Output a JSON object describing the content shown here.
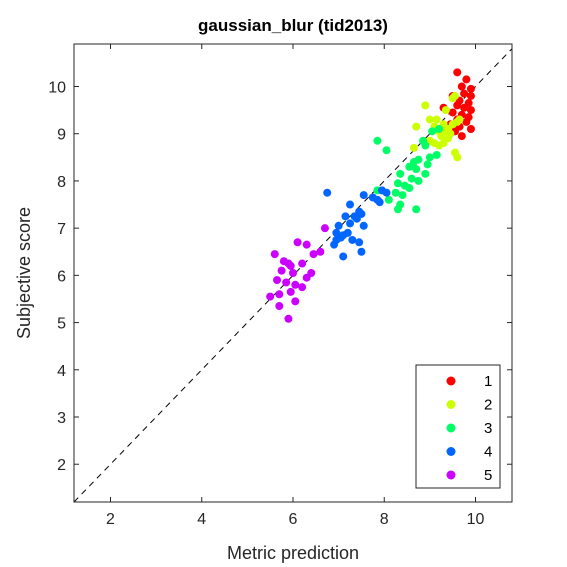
{
  "chart_data": {
    "type": "scatter",
    "title": "gaussian_blur (tid2013)",
    "xlabel": "Metric prediction",
    "ylabel": "Subjective score",
    "xlim": [
      1.2,
      10.8
    ],
    "ylim": [
      1.2,
      10.9
    ],
    "xticks": [
      2,
      4,
      6,
      8,
      10
    ],
    "yticks": [
      2,
      3,
      4,
      5,
      6,
      7,
      8,
      9,
      10
    ],
    "grid": false,
    "legend_position": "bottom-right",
    "reference_line": "identity-dashed",
    "series": [
      {
        "name": "1",
        "color": "#ff0000",
        "points": [
          [
            9.6,
            10.3
          ],
          [
            9.8,
            10.15
          ],
          [
            9.7,
            10.0
          ],
          [
            9.9,
            9.95
          ],
          [
            9.5,
            9.8
          ],
          [
            9.75,
            9.85
          ],
          [
            9.9,
            9.8
          ],
          [
            9.65,
            9.7
          ],
          [
            9.85,
            9.65
          ],
          [
            9.3,
            9.55
          ],
          [
            9.6,
            9.6
          ],
          [
            9.75,
            9.55
          ],
          [
            9.9,
            9.5
          ],
          [
            9.5,
            9.45
          ],
          [
            9.7,
            9.4
          ],
          [
            9.85,
            9.35
          ],
          [
            9.6,
            9.3
          ],
          [
            9.8,
            9.25
          ],
          [
            9.45,
            9.2
          ],
          [
            9.65,
            9.15
          ],
          [
            9.9,
            9.1
          ],
          [
            9.55,
            9.05
          ],
          [
            9.7,
            8.95
          ]
        ]
      },
      {
        "name": "2",
        "color": "#ccff00",
        "points": [
          [
            8.9,
            9.6
          ],
          [
            9.35,
            9.5
          ],
          [
            9.5,
            9.75
          ],
          [
            9.55,
            9.8
          ],
          [
            9.15,
            9.3
          ],
          [
            9.3,
            9.2
          ],
          [
            9.0,
            9.3
          ],
          [
            9.4,
            9.1
          ],
          [
            9.5,
            9.2
          ],
          [
            9.6,
            9.25
          ],
          [
            9.65,
            9.3
          ],
          [
            8.7,
            9.15
          ],
          [
            9.1,
            9.15
          ],
          [
            9.2,
            9.05
          ],
          [
            9.25,
            8.95
          ],
          [
            9.35,
            9.05
          ],
          [
            9.45,
            9.0
          ],
          [
            9.0,
            8.85
          ],
          [
            9.1,
            8.8
          ],
          [
            9.2,
            8.75
          ],
          [
            9.3,
            8.8
          ],
          [
            9.4,
            8.9
          ],
          [
            9.55,
            8.6
          ],
          [
            9.6,
            8.5
          ],
          [
            8.65,
            8.7
          ]
        ]
      },
      {
        "name": "3",
        "color": "#00ff66",
        "points": [
          [
            9.05,
            9.05
          ],
          [
            9.2,
            9.1
          ],
          [
            8.85,
            8.85
          ],
          [
            8.9,
            8.75
          ],
          [
            7.85,
            8.85
          ],
          [
            8.05,
            8.65
          ],
          [
            9.0,
            8.5
          ],
          [
            9.15,
            8.55
          ],
          [
            8.65,
            8.4
          ],
          [
            8.75,
            8.45
          ],
          [
            8.95,
            8.35
          ],
          [
            8.55,
            8.3
          ],
          [
            8.7,
            8.25
          ],
          [
            8.35,
            8.15
          ],
          [
            8.6,
            8.05
          ],
          [
            8.75,
            8.0
          ],
          [
            8.9,
            8.15
          ],
          [
            8.3,
            7.95
          ],
          [
            8.45,
            7.9
          ],
          [
            8.55,
            7.85
          ],
          [
            7.85,
            7.8
          ],
          [
            8.25,
            7.75
          ],
          [
            8.4,
            7.7
          ],
          [
            8.1,
            7.6
          ],
          [
            8.35,
            7.5
          ],
          [
            8.3,
            7.4
          ],
          [
            8.7,
            7.4
          ]
        ]
      },
      {
        "name": "4",
        "color": "#0066ff",
        "points": [
          [
            6.75,
            7.75
          ],
          [
            7.25,
            7.5
          ],
          [
            7.55,
            7.7
          ],
          [
            7.75,
            7.65
          ],
          [
            7.95,
            7.8
          ],
          [
            8.05,
            7.75
          ],
          [
            7.85,
            7.6
          ],
          [
            7.9,
            7.55
          ],
          [
            7.45,
            7.35
          ],
          [
            7.35,
            7.25
          ],
          [
            7.5,
            7.3
          ],
          [
            7.15,
            7.25
          ],
          [
            7.4,
            7.2
          ],
          [
            7.0,
            7.05
          ],
          [
            7.25,
            7.1
          ],
          [
            7.55,
            7.05
          ],
          [
            6.95,
            6.9
          ],
          [
            7.1,
            6.85
          ],
          [
            7.2,
            6.9
          ],
          [
            6.95,
            6.75
          ],
          [
            7.05,
            6.8
          ],
          [
            7.3,
            6.75
          ],
          [
            7.45,
            6.7
          ],
          [
            6.9,
            6.65
          ],
          [
            7.1,
            6.4
          ],
          [
            7.5,
            6.5
          ]
        ]
      },
      {
        "name": "5",
        "color": "#cc00ff",
        "points": [
          [
            6.7,
            7.0
          ],
          [
            6.1,
            6.7
          ],
          [
            6.3,
            6.65
          ],
          [
            6.45,
            6.45
          ],
          [
            6.6,
            6.5
          ],
          [
            5.6,
            6.45
          ],
          [
            5.8,
            6.3
          ],
          [
            5.9,
            6.25
          ],
          [
            5.95,
            6.2
          ],
          [
            6.2,
            6.25
          ],
          [
            5.75,
            6.1
          ],
          [
            6.0,
            6.05
          ],
          [
            6.4,
            6.05
          ],
          [
            6.3,
            5.95
          ],
          [
            5.65,
            5.9
          ],
          [
            5.85,
            5.85
          ],
          [
            6.05,
            5.8
          ],
          [
            6.2,
            5.75
          ],
          [
            5.95,
            5.65
          ],
          [
            5.7,
            5.6
          ],
          [
            5.5,
            5.55
          ],
          [
            6.05,
            5.45
          ],
          [
            5.7,
            5.35
          ],
          [
            5.9,
            5.08
          ]
        ]
      }
    ]
  }
}
